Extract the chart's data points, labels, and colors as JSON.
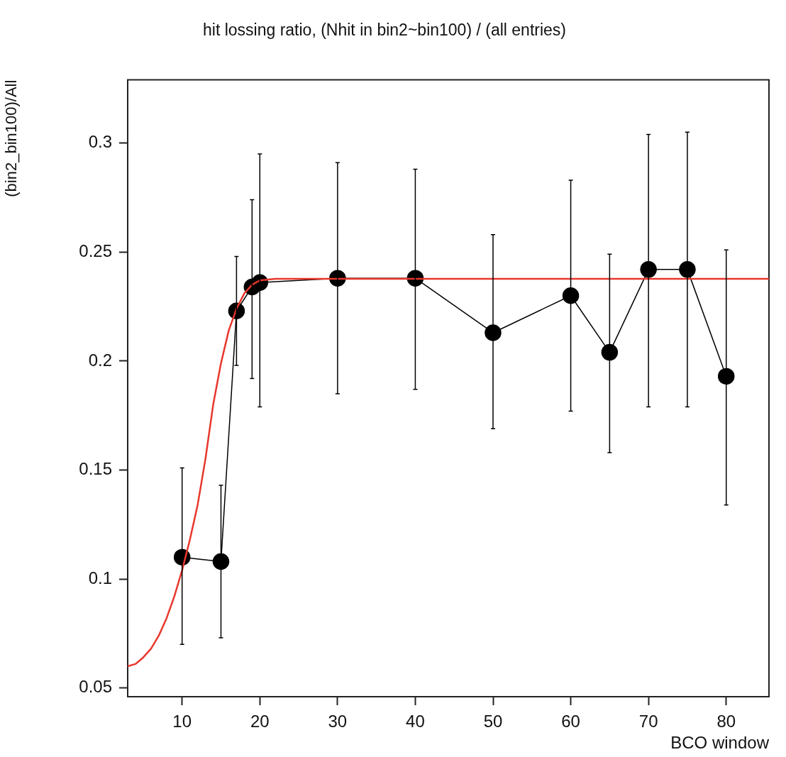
{
  "chart_data": {
    "type": "line",
    "title": "hit lossing ratio, (Nhit in bin2~bin100) / (all entries)",
    "xlabel": "BCO window",
    "ylabel": "(bin2_bin100)/All",
    "xlim": [
      3,
      85.5
    ],
    "xticks": [
      10,
      20,
      30,
      40,
      50,
      60,
      70,
      80
    ],
    "ylim": [
      0.046,
      0.329
    ],
    "yticks": [
      0.05,
      0.1,
      0.15,
      0.2,
      0.25,
      0.3
    ],
    "marker": "circle",
    "line_style": "solid",
    "legend": false,
    "series": [
      {
        "color": "#000000",
        "x": [
          10,
          15,
          17,
          19,
          20,
          30,
          40,
          50,
          60,
          65,
          70,
          75,
          80
        ],
        "values": [
          0.11,
          0.108,
          0.223,
          0.234,
          0.236,
          0.238,
          0.238,
          0.213,
          0.23,
          0.204,
          0.242,
          0.242,
          0.193
        ],
        "errors": [
          [
            0.07,
            0.151
          ],
          [
            0.073,
            0.143
          ],
          [
            0.198,
            0.248
          ],
          [
            0.192,
            0.274
          ],
          [
            0.179,
            0.295
          ],
          [
            0.185,
            0.291
          ],
          [
            0.187,
            0.288
          ],
          [
            0.169,
            0.258
          ],
          [
            0.177,
            0.283
          ],
          [
            0.158,
            0.249
          ],
          [
            0.179,
            0.304
          ],
          [
            0.179,
            0.305
          ],
          [
            0.134,
            0.251
          ]
        ]
      },
      {
        "type": "line",
        "color": "#e8372c",
        "marker": "none",
        "x": [
          3,
          4,
          5,
          6,
          7,
          8,
          9,
          10,
          11,
          12,
          13,
          14,
          15,
          16,
          17,
          18,
          19,
          20,
          22,
          25,
          30,
          85.5
        ],
        "values": [
          0.06,
          0.061,
          0.064,
          0.068,
          0.074,
          0.082,
          0.092,
          0.104,
          0.118,
          0.134,
          0.155,
          0.18,
          0.199,
          0.214,
          0.224,
          0.231,
          0.235,
          0.237,
          0.2377,
          0.2377,
          0.2377,
          0.2377
        ]
      }
    ]
  }
}
